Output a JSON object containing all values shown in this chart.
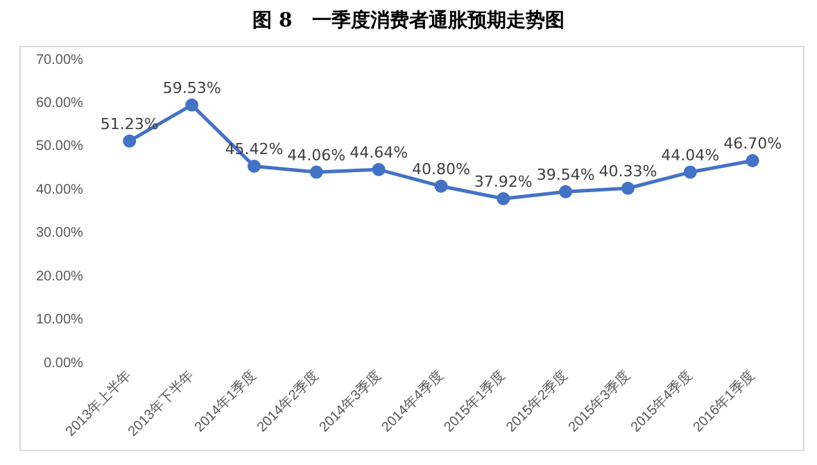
{
  "chart_data": {
    "type": "line",
    "title": "图 8　一季度消费者通胀预期走势图",
    "categories": [
      "2013年上半年",
      "2013年下半年",
      "2014年1季度",
      "2014年2季度",
      "2014年3季度",
      "2014年4季度",
      "2015年1季度",
      "2015年2季度",
      "2015年3季度",
      "2015年4季度",
      "2016年1季度"
    ],
    "series": [
      {
        "color": "#4472c4",
        "values": [
          51.23,
          59.53,
          45.42,
          44.06,
          44.64,
          40.8,
          37.92,
          39.54,
          40.33,
          44.04,
          46.7
        ],
        "value_labels": [
          "51.23%",
          "59.53%",
          "45.42%",
          "44.06%",
          "44.64%",
          "40.80%",
          "37.92%",
          "39.54%",
          "40.33%",
          "44.04%",
          "46.70%"
        ]
      }
    ],
    "ylim": [
      0,
      70
    ],
    "yticks": [
      {
        "value": 0,
        "label": "0.00%"
      },
      {
        "value": 10,
        "label": "10.00%"
      },
      {
        "value": 20,
        "label": "20.00%"
      },
      {
        "value": 30,
        "label": "30.00%"
      },
      {
        "value": 40,
        "label": "40.00%"
      },
      {
        "value": 50,
        "label": "50.00%"
      },
      {
        "value": 60,
        "label": "60.00%"
      },
      {
        "value": 70,
        "label": "70.00%"
      }
    ],
    "grid": false,
    "legend": false,
    "marker": "circle",
    "line_style": "solid"
  }
}
